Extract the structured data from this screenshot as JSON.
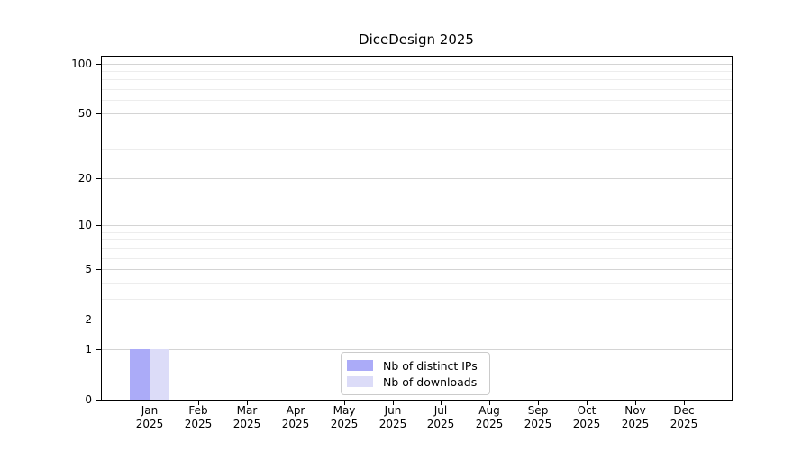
{
  "title": "DiceDesign 2025",
  "chart_data": {
    "type": "bar",
    "title": "DiceDesign 2025",
    "categories": [
      "Jan",
      "Feb",
      "Mar",
      "Apr",
      "May",
      "Jun",
      "Jul",
      "Aug",
      "Sep",
      "Oct",
      "Nov",
      "Dec"
    ],
    "year": "2025",
    "series": [
      {
        "name": "Nb of distinct IPs",
        "color": "#ababf8",
        "values": [
          1,
          0,
          0,
          0,
          0,
          0,
          0,
          0,
          0,
          0,
          0,
          0
        ]
      },
      {
        "name": "Nb of downloads",
        "color": "#dcdcf8",
        "values": [
          1,
          0,
          0,
          0,
          0,
          0,
          0,
          0,
          0,
          0,
          0,
          0
        ]
      }
    ],
    "xlabel": "",
    "ylabel": "",
    "yscale": "log1p",
    "ylim": [
      0,
      110
    ],
    "yticks": [
      0,
      1,
      2,
      5,
      10,
      20,
      50,
      100
    ],
    "yticks_minor": [
      3,
      4,
      6,
      7,
      8,
      9,
      30,
      40,
      60,
      70,
      80,
      90
    ],
    "grid": true,
    "legend_position": "lower center",
    "colors": {
      "grid_major": "#d4d4d4",
      "grid_minor": "#ededed",
      "spine": "#000000",
      "text": "#000000"
    }
  }
}
